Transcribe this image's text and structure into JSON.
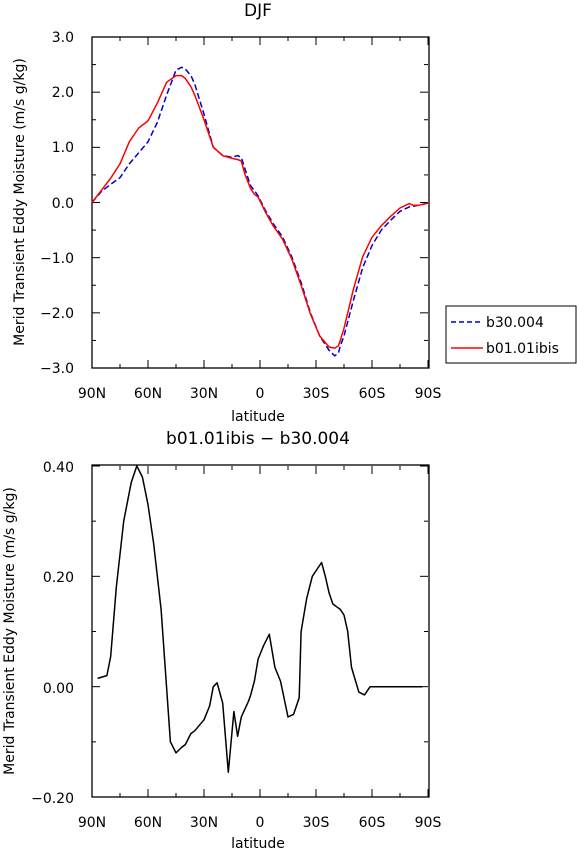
{
  "chart_data": [
    {
      "type": "line",
      "title": "DJF",
      "xlabel": "latitude",
      "ylabel": "Merid Transient Eddy Moisture (m/s g/kg)",
      "x_ticks": [
        "90N",
        "60N",
        "30N",
        "0",
        "30S",
        "60S",
        "90S"
      ],
      "y_ticks": [
        "3.0",
        "2.0",
        "1.0",
        "0.0",
        "−1.0",
        "−2.0",
        "−3.0"
      ],
      "xlim": [
        90,
        -90
      ],
      "ylim": [
        -3.0,
        3.0
      ],
      "legend_position": "right",
      "series": [
        {
          "name": "b30.004",
          "style": "dashed",
          "color": "#0000cc",
          "x": [
            90,
            85,
            80,
            75,
            70,
            65,
            60,
            55,
            50,
            45,
            42,
            40,
            37,
            35,
            30,
            25,
            20,
            15,
            12,
            10,
            8,
            5,
            3,
            1,
            -3,
            -7,
            -12,
            -17,
            -22,
            -27,
            -32,
            -37,
            -40,
            -42,
            -43,
            -45,
            -50,
            -55,
            -60,
            -65,
            -70,
            -75,
            -80,
            -85,
            -90
          ],
          "values": [
            0.0,
            0.2,
            0.33,
            0.45,
            0.7,
            0.9,
            1.1,
            1.45,
            1.95,
            2.4,
            2.45,
            2.42,
            2.3,
            2.15,
            1.6,
            1.0,
            0.85,
            0.82,
            0.85,
            0.82,
            0.6,
            0.3,
            0.22,
            0.12,
            -0.15,
            -0.38,
            -0.62,
            -0.98,
            -1.45,
            -2.0,
            -2.42,
            -2.68,
            -2.78,
            -2.73,
            -2.6,
            -2.42,
            -1.78,
            -1.18,
            -0.78,
            -0.5,
            -0.32,
            -0.16,
            -0.08,
            -0.05,
            -0.01
          ]
        },
        {
          "name": "b01.01ibis",
          "style": "solid",
          "color": "#ff0000",
          "x": [
            90,
            85,
            80,
            75,
            70,
            65,
            60,
            55,
            50,
            45,
            42,
            40,
            37,
            35,
            30,
            25,
            20,
            15,
            12,
            10,
            8,
            5,
            3,
            1,
            -3,
            -7,
            -12,
            -17,
            -22,
            -27,
            -32,
            -37,
            -40,
            -42,
            -43,
            -45,
            -50,
            -55,
            -60,
            -65,
            -70,
            -75,
            -80,
            -82,
            -85,
            -90
          ],
          "values": [
            0.0,
            0.22,
            0.44,
            0.7,
            1.1,
            1.35,
            1.48,
            1.8,
            2.18,
            2.3,
            2.3,
            2.25,
            2.1,
            1.95,
            1.5,
            1.0,
            0.85,
            0.8,
            0.78,
            0.75,
            0.5,
            0.25,
            0.15,
            0.1,
            -0.18,
            -0.42,
            -0.66,
            -1.02,
            -1.5,
            -2.02,
            -2.42,
            -2.62,
            -2.64,
            -2.6,
            -2.5,
            -2.28,
            -1.58,
            -0.98,
            -0.63,
            -0.42,
            -0.25,
            -0.1,
            -0.02,
            -0.05,
            -0.05,
            -0.01
          ]
        }
      ]
    },
    {
      "type": "line",
      "title": "b01.01ibis − b30.004",
      "xlabel": "latitude",
      "ylabel": "Merid Transient Eddy Moisture (m/s g/kg)",
      "x_ticks": [
        "90N",
        "60N",
        "30N",
        "0",
        "30S",
        "60S",
        "90S"
      ],
      "y_ticks": [
        "0.40",
        "0.20",
        "0.00",
        "−0.20"
      ],
      "xlim": [
        90,
        -90
      ],
      "ylim": [
        -0.2,
        0.4
      ],
      "series": [
        {
          "color": "#000000",
          "x": [
            87,
            82,
            80,
            77,
            73,
            69,
            66,
            63,
            60,
            57,
            53,
            48,
            45,
            42,
            40,
            37,
            35,
            30,
            27,
            25,
            23,
            20,
            17,
            14,
            12,
            10,
            8,
            6,
            5,
            3,
            1,
            -2,
            -5,
            -8,
            -11,
            -15,
            -18,
            -21,
            -22,
            -25,
            -28,
            -33,
            -35,
            -37,
            -39,
            -41,
            -43,
            -45,
            -47,
            -49,
            -53,
            -56,
            -59,
            -61,
            -64,
            -66,
            -69,
            -72,
            -75,
            -78,
            -80,
            -82,
            -84,
            -87
          ],
          "values": [
            0.015,
            0.02,
            0.055,
            0.18,
            0.3,
            0.37,
            0.4,
            0.38,
            0.33,
            0.26,
            0.14,
            -0.1,
            -0.12,
            -0.11,
            -0.105,
            -0.085,
            -0.08,
            -0.06,
            -0.035,
            0.0,
            0.007,
            -0.03,
            -0.155,
            -0.045,
            -0.09,
            -0.055,
            -0.04,
            -0.025,
            -0.015,
            0.01,
            0.05,
            0.075,
            0.095,
            0.035,
            0.01,
            -0.055,
            -0.05,
            -0.02,
            0.1,
            0.16,
            0.2,
            0.225,
            0.2,
            0.17,
            0.15,
            0.145,
            0.14,
            0.13,
            0.1,
            0.035,
            -0.01,
            -0.015,
            0.0,
            0.0,
            0.0,
            0.0,
            0.0,
            0.0,
            0.0,
            0.0,
            0.0,
            0.0,
            0.0,
            0.0
          ]
        }
      ]
    }
  ]
}
